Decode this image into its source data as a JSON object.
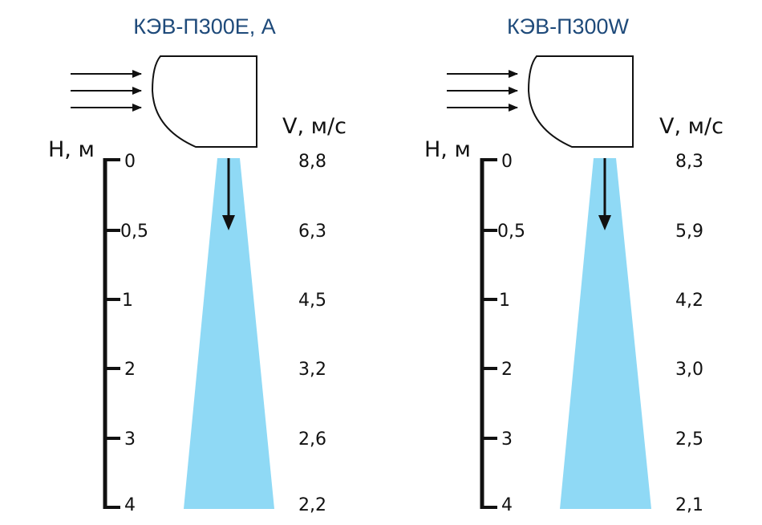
{
  "colors": {
    "title": "#1e4a7a",
    "airflow": "#8fd9f5",
    "ink": "#111111"
  },
  "panels": [
    {
      "title": "КЭВ-П300Е, А",
      "height_label": "H, м",
      "velocity_label": "V, м/с",
      "heights": [
        "0",
        "0,5",
        "1",
        "2",
        "3",
        "4"
      ],
      "velocities": [
        "8,8",
        "6,3",
        "4,5",
        "3,2",
        "2,6",
        "2,2"
      ]
    },
    {
      "title": "КЭВ-П300W",
      "height_label": "H, м",
      "velocity_label": "V, м/с",
      "heights": [
        "0",
        "0,5",
        "1",
        "2",
        "3",
        "4"
      ],
      "velocities": [
        "8,3",
        "5,9",
        "4,2",
        "3,0",
        "2,5",
        "2,1"
      ]
    }
  ]
}
